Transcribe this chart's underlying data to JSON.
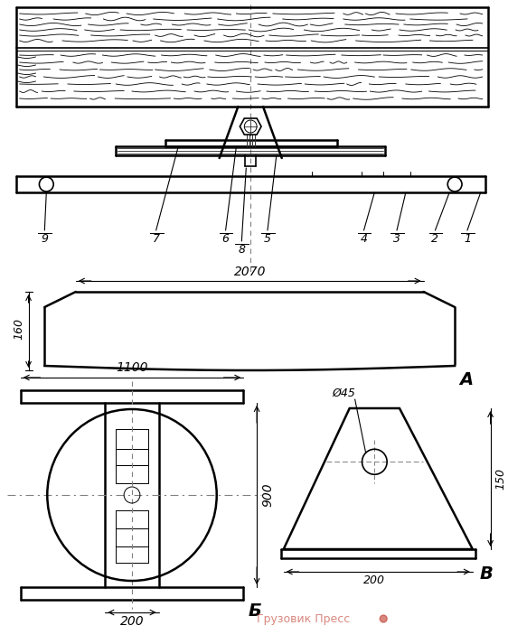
{
  "bg_color": "#ffffff",
  "line_color": "#000000",
  "fig_width": 5.62,
  "fig_height": 7.03,
  "watermark_color": "#c0392b",
  "watermark_text": "Грузовик Пресс",
  "label_A": "А",
  "label_B": "Б",
  "label_V": "В",
  "dim_2070": "2070",
  "dim_160": "160",
  "dim_1100": "1100",
  "dim_900": "900",
  "dim_200_b": "200",
  "dim_45": "Ø45",
  "dim_150": "150",
  "dim_200_v": "200",
  "numbers": [
    "1",
    "2",
    "3",
    "4",
    "5",
    "6",
    "7",
    "8",
    "9"
  ]
}
